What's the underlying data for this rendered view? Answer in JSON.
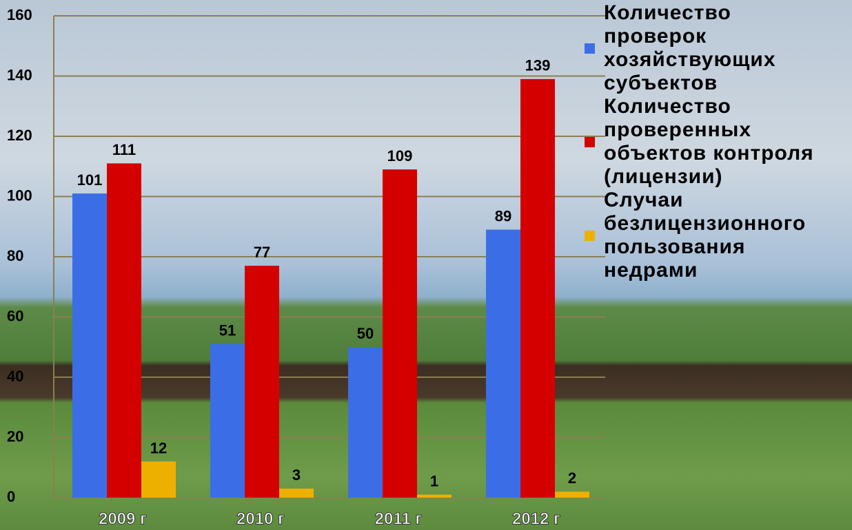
{
  "chart_data": {
    "type": "bar",
    "categories": [
      "2009 г",
      "2010 г",
      "2011 г",
      "2012 г"
    ],
    "series": [
      {
        "name": "Количество\nпроверок\nхозяйствующих\nсубъектов",
        "color": "#3b6ee6",
        "values": [
          101,
          51,
          50,
          89
        ]
      },
      {
        "name": "Количество\nпроверенных\nобъектов контроля\n(лицензии)",
        "color": "#d40000",
        "values": [
          111,
          77,
          109,
          139
        ]
      },
      {
        "name": "Случаи\nбезлицензионного\nпользования\nнедрами",
        "color": "#eeb000",
        "values": [
          12,
          3,
          1,
          2
        ]
      }
    ],
    "ylim": [
      0,
      160
    ],
    "yticks": [
      0,
      20,
      40,
      60,
      80,
      100,
      120,
      140,
      160
    ],
    "grid": true,
    "legend": "right"
  }
}
